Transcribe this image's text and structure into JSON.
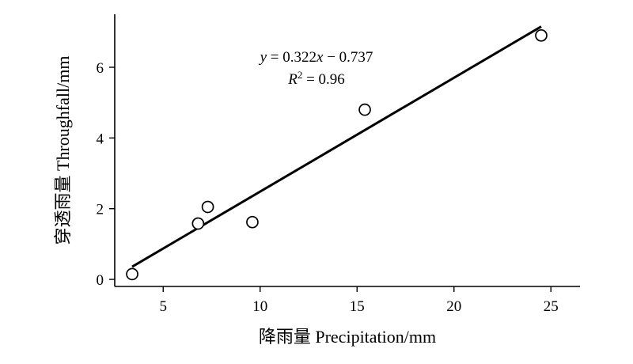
{
  "chart_data": {
    "type": "scatter",
    "xlabel": "降雨量 Precipitation/mm",
    "ylabel": "穿透雨量 Throughfall/mm",
    "xlim": [
      2.5,
      26.5
    ],
    "ylim": [
      -0.2,
      7.5
    ],
    "xticks": [
      5,
      10,
      15,
      20,
      25
    ],
    "yticks": [
      0,
      2,
      4,
      6
    ],
    "points": [
      {
        "x": 3.4,
        "y": 0.15
      },
      {
        "x": 6.8,
        "y": 1.58
      },
      {
        "x": 7.3,
        "y": 2.05
      },
      {
        "x": 9.6,
        "y": 1.62
      },
      {
        "x": 15.4,
        "y": 4.8
      },
      {
        "x": 24.5,
        "y": 6.9
      }
    ],
    "fit": {
      "slope": 0.322,
      "intercept": -0.737,
      "x_range": [
        3.4,
        24.5
      ],
      "equation": "y = 0.322x − 0.737",
      "r2_label": "R",
      "r2_power": "2",
      "r2_value": " = 0.96"
    },
    "grid": false,
    "legend": "none"
  }
}
